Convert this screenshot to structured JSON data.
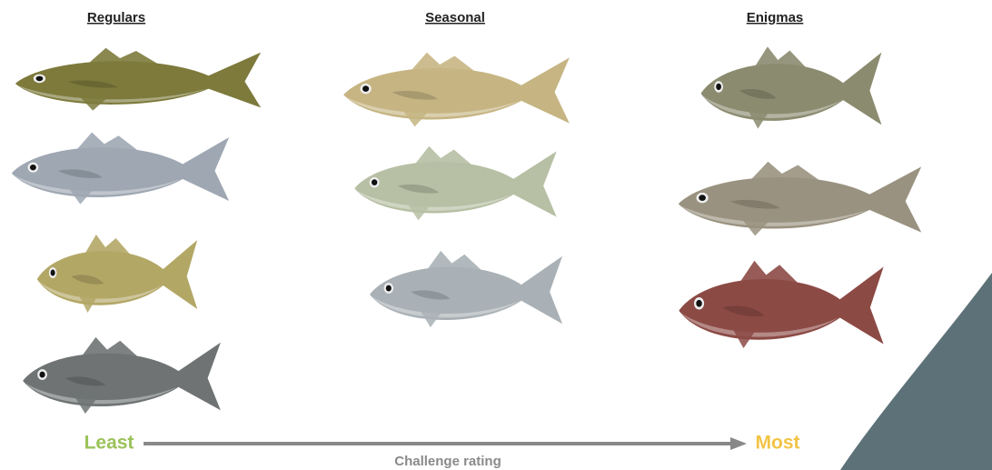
{
  "columns": [
    {
      "title": "Regulars"
    },
    {
      "title": "Seasonal"
    },
    {
      "title": "Enigmas"
    }
  ],
  "scale": {
    "low": "Least",
    "high": "Most",
    "label": "Challenge rating"
  }
}
